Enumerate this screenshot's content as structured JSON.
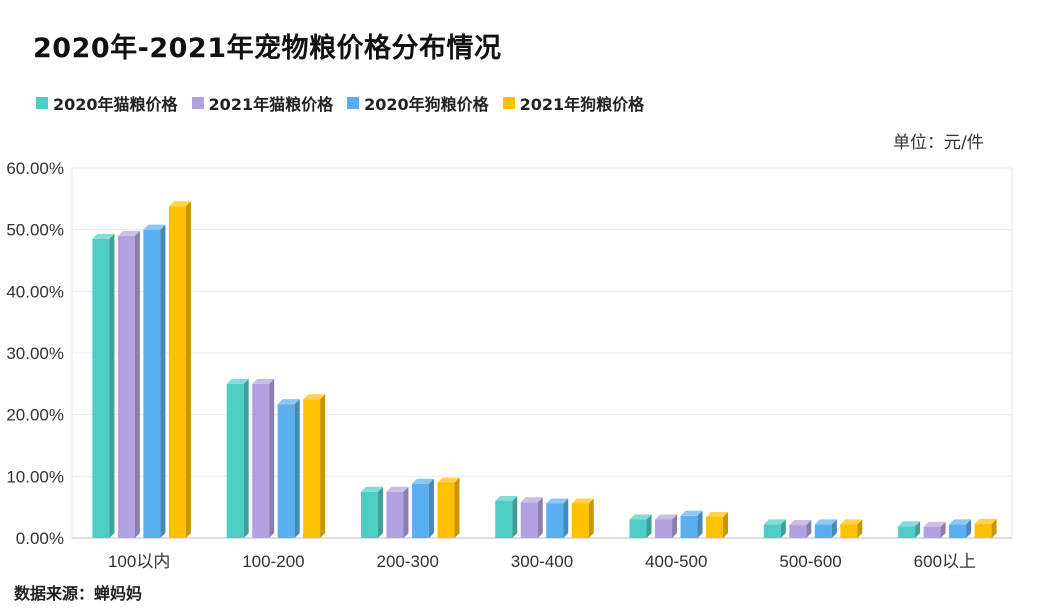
{
  "chart_data": {
    "type": "bar",
    "title": "2020年-2021年宠物粮价格分布情况",
    "unit_note": "单位：元/件",
    "source": "数据来源：蝉妈妈",
    "categories": [
      "100以内",
      "100-200",
      "200-300",
      "300-400",
      "400-500",
      "500-600",
      "600以上"
    ],
    "series": [
      {
        "name": "2020年猫粮价格",
        "color": "#4ecdc4",
        "values": [
          48.5,
          25.0,
          7.5,
          6.0,
          3.0,
          2.2,
          1.9
        ]
      },
      {
        "name": "2021年猫粮价格",
        "color": "#b3a0e0",
        "values": [
          49.0,
          25.0,
          7.5,
          5.8,
          3.0,
          2.1,
          1.8
        ]
      },
      {
        "name": "2020年狗粮价格",
        "color": "#5aaff0",
        "values": [
          50.0,
          21.7,
          8.8,
          5.6,
          3.6,
          2.2,
          2.2
        ]
      },
      {
        "name": "2021年狗粮价格",
        "color": "#ffc000",
        "values": [
          53.8,
          22.5,
          9.0,
          5.6,
          3.4,
          2.2,
          2.3
        ]
      }
    ],
    "y_ticks": [
      "0.00%",
      "10.00%",
      "20.00%",
      "30.00%",
      "40.00%",
      "50.00%",
      "60.00%"
    ],
    "ylim": [
      0,
      60
    ],
    "grid": true,
    "legend_position": "top-left"
  }
}
